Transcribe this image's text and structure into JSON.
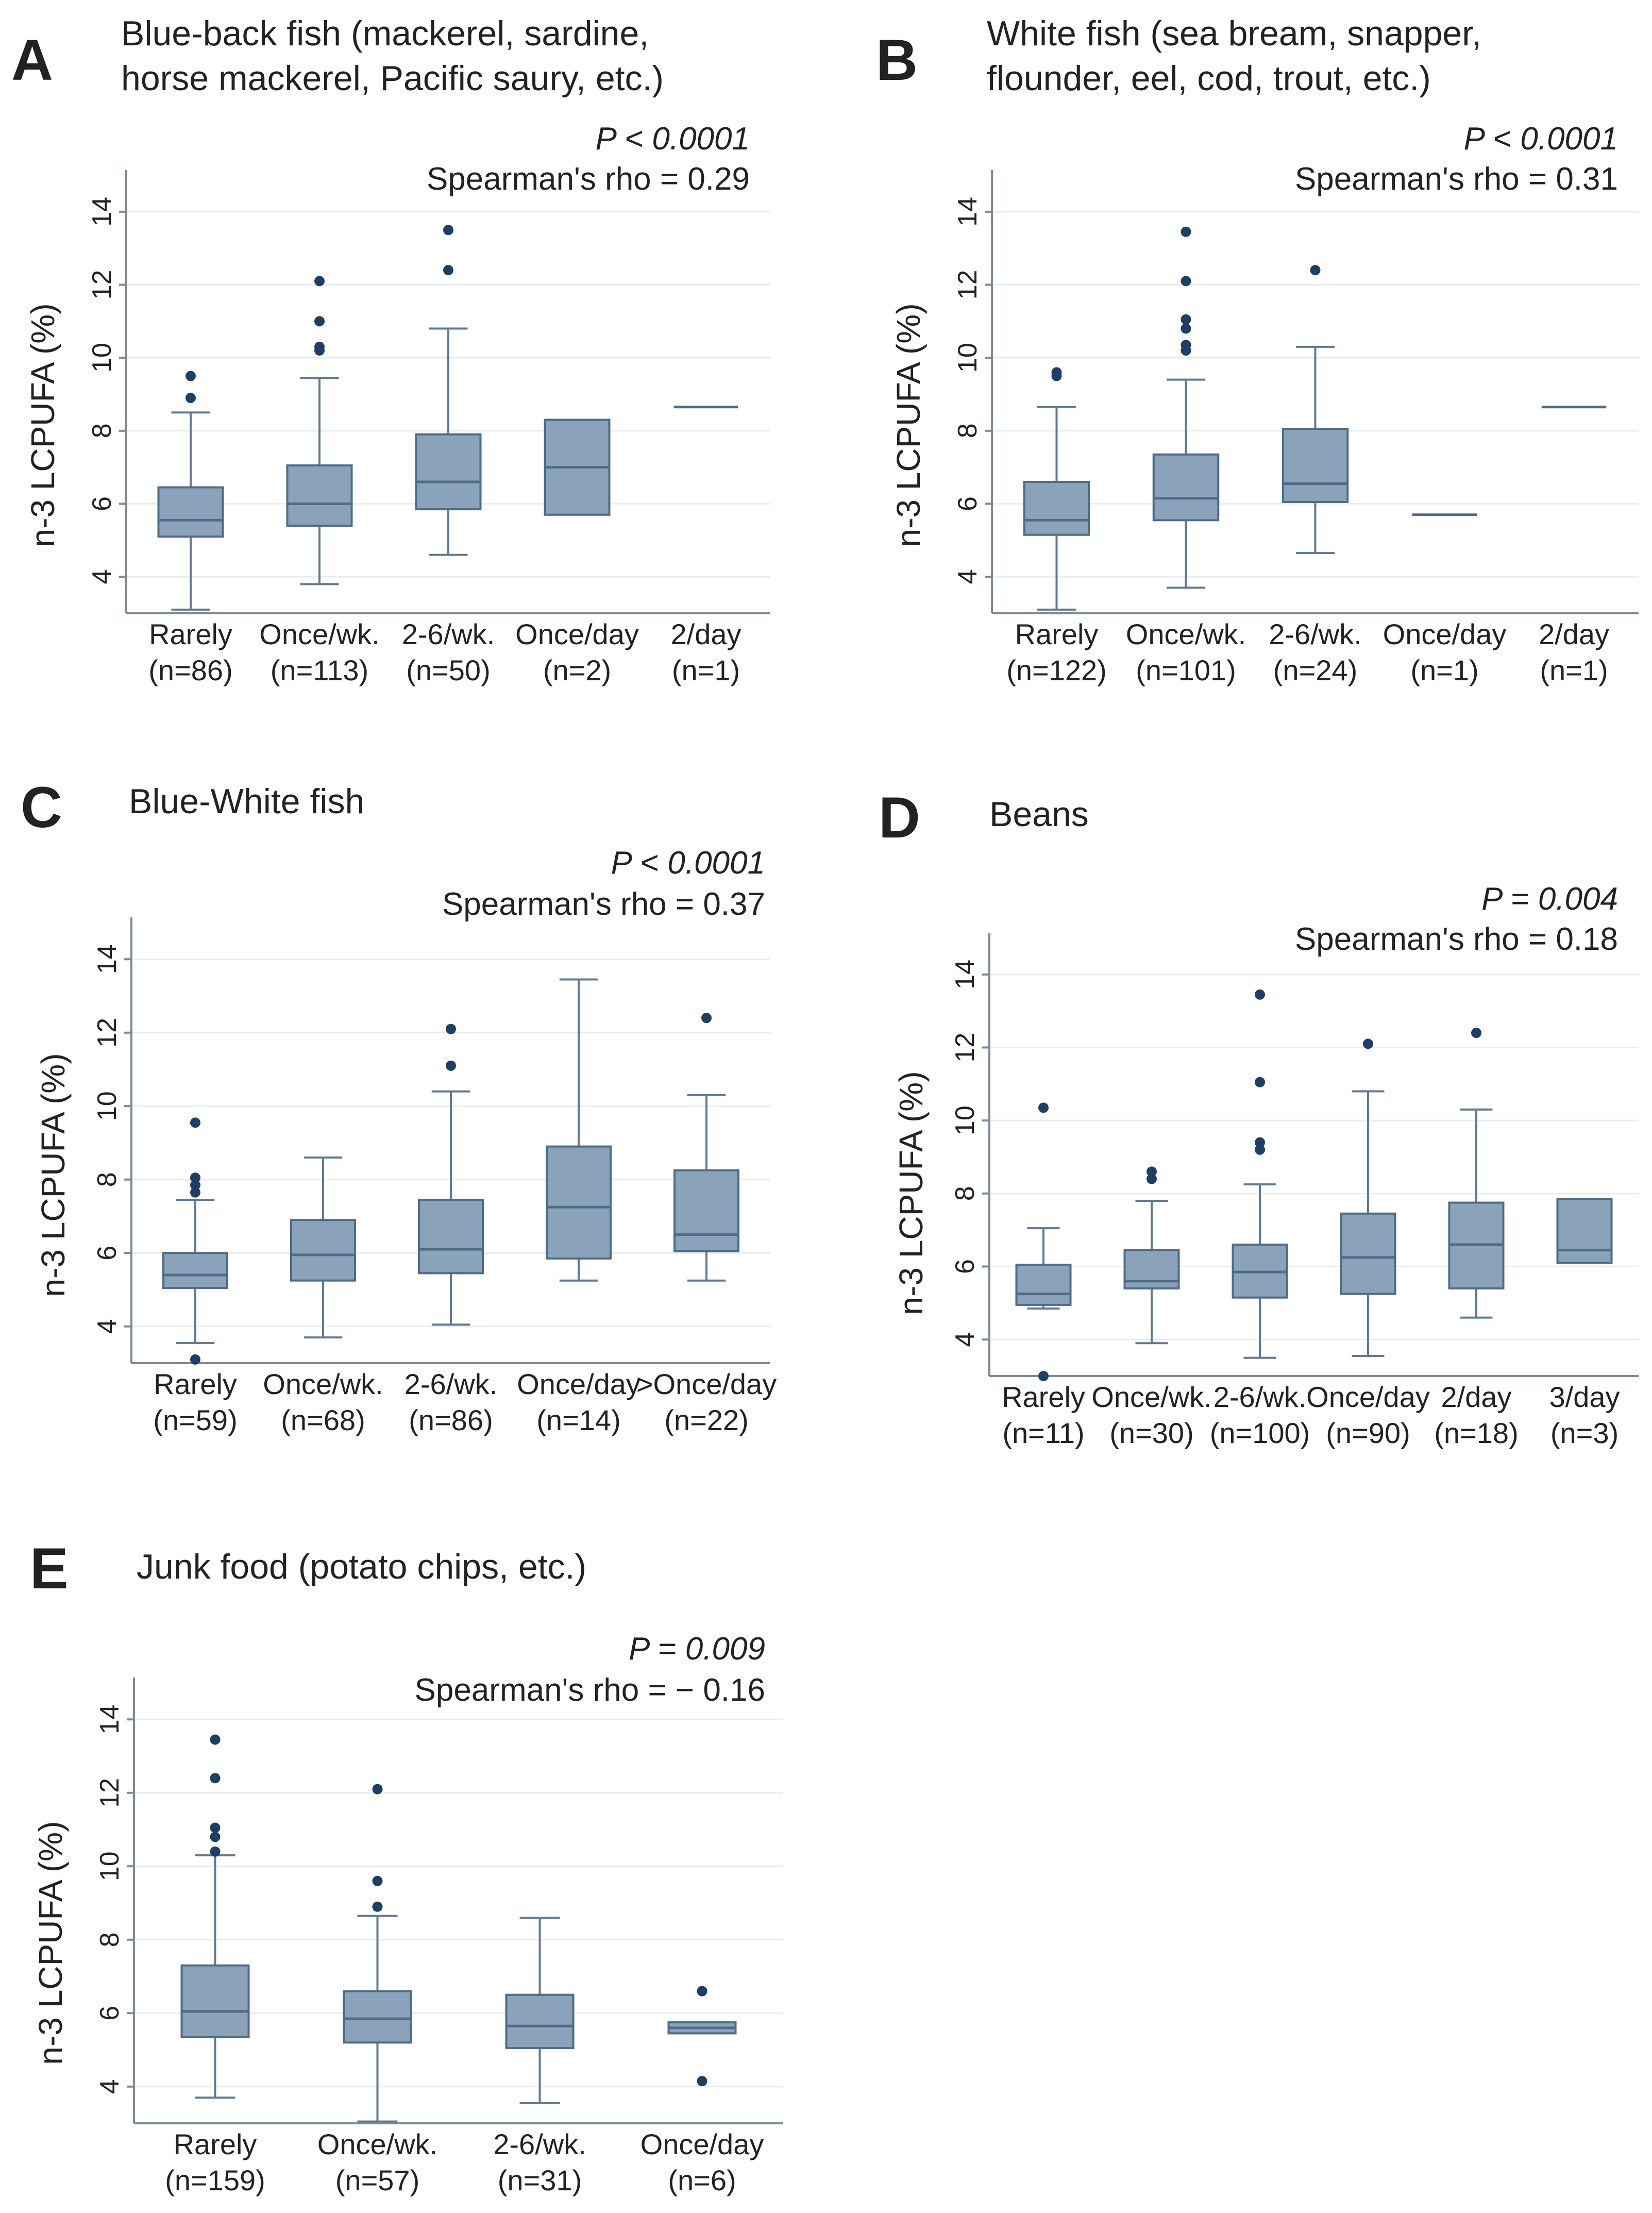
{
  "figure": {
    "ylabel": "n-3 LCPUFA (%)"
  },
  "chart_data": [
    {
      "type": "box",
      "panel": "A",
      "title_lines": [
        "Blue-back fish (mackerel, sardine,",
        "horse mackerel, Pacific saury, etc.)"
      ],
      "p_value": "P < 0.0001",
      "rho_text": "Spearman's rho = 0.29",
      "ylabel": "n-3 LCPUFA (%)",
      "yticks": [
        4,
        6,
        8,
        10,
        12,
        14
      ],
      "ylim": [
        3,
        15
      ],
      "categories": [
        {
          "label": "Rarely",
          "n": "(n=86)",
          "q1": 5.1,
          "median": 5.55,
          "q3": 6.45,
          "whisker_low": 3.1,
          "whisker_high": 8.5,
          "outliers": [
            8.9,
            9.5
          ]
        },
        {
          "label": "Once/wk.",
          "n": "(n=113)",
          "q1": 5.4,
          "median": 6.0,
          "q3": 7.05,
          "whisker_low": 3.8,
          "whisker_high": 9.45,
          "outliers": [
            10.2,
            10.3,
            11.0,
            12.1
          ]
        },
        {
          "label": "2-6/wk.",
          "n": "(n=50)",
          "q1": 5.85,
          "median": 6.6,
          "q3": 7.9,
          "whisker_low": 4.6,
          "whisker_high": 10.8,
          "outliers": [
            12.4,
            13.5
          ]
        },
        {
          "label": "Once/day",
          "n": "(n=2)",
          "q1": 5.7,
          "median": 7.0,
          "q3": 8.3,
          "whisker_low": 5.7,
          "whisker_high": 8.3,
          "outliers": []
        },
        {
          "label": "2/day",
          "n": "(n=1)",
          "q1": 8.65,
          "median": 8.65,
          "q3": 8.65,
          "whisker_low": 8.65,
          "whisker_high": 8.65,
          "outliers": []
        }
      ]
    },
    {
      "type": "box",
      "panel": "B",
      "title_lines": [
        "White fish (sea bream, snapper,",
        "flounder, eel, cod, trout, etc.)"
      ],
      "p_value": "P < 0.0001",
      "rho_text": "Spearman's rho = 0.31",
      "ylabel": "n-3 LCPUFA (%)",
      "yticks": [
        4,
        6,
        8,
        10,
        12,
        14
      ],
      "ylim": [
        3,
        15
      ],
      "categories": [
        {
          "label": "Rarely",
          "n": "(n=122)",
          "q1": 5.15,
          "median": 5.55,
          "q3": 6.6,
          "whisker_low": 3.1,
          "whisker_high": 8.65,
          "outliers": [
            9.5,
            9.6
          ]
        },
        {
          "label": "Once/wk.",
          "n": "(n=101)",
          "q1": 5.55,
          "median": 6.15,
          "q3": 7.35,
          "whisker_low": 3.7,
          "whisker_high": 9.4,
          "outliers": [
            10.2,
            10.35,
            10.8,
            11.05,
            12.1,
            13.45
          ]
        },
        {
          "label": "2-6/wk.",
          "n": "(n=24)",
          "q1": 6.05,
          "median": 6.55,
          "q3": 8.05,
          "whisker_low": 4.65,
          "whisker_high": 10.3,
          "outliers": [
            12.4
          ]
        },
        {
          "label": "Once/day",
          "n": "(n=1)",
          "q1": 5.7,
          "median": 5.7,
          "q3": 5.7,
          "whisker_low": 5.7,
          "whisker_high": 5.7,
          "outliers": []
        },
        {
          "label": "2/day",
          "n": "(n=1)",
          "q1": 8.65,
          "median": 8.65,
          "q3": 8.65,
          "whisker_low": 8.65,
          "whisker_high": 8.65,
          "outliers": []
        }
      ]
    },
    {
      "type": "box",
      "panel": "C",
      "title_lines": [
        "Blue-White fish"
      ],
      "p_value": "P < 0.0001",
      "rho_text": "Spearman's rho = 0.37",
      "ylabel": "n-3 LCPUFA (%)",
      "yticks": [
        4,
        6,
        8,
        10,
        12,
        14
      ],
      "ylim": [
        3,
        15
      ],
      "categories": [
        {
          "label": "Rarely",
          "n": "(n=59)",
          "q1": 5.05,
          "median": 5.4,
          "q3": 6.0,
          "whisker_low": 3.55,
          "whisker_high": 7.45,
          "outliers": [
            3.1,
            7.65,
            7.85,
            8.05,
            9.55
          ]
        },
        {
          "label": "Once/wk.",
          "n": "(n=68)",
          "q1": 5.25,
          "median": 5.95,
          "q3": 6.9,
          "whisker_low": 3.7,
          "whisker_high": 8.6,
          "outliers": []
        },
        {
          "label": "2-6/wk.",
          "n": "(n=86)",
          "q1": 5.45,
          "median": 6.1,
          "q3": 7.45,
          "whisker_low": 4.05,
          "whisker_high": 10.4,
          "outliers": [
            11.1,
            12.1
          ]
        },
        {
          "label": "Once/day",
          "n": "(n=14)",
          "q1": 5.85,
          "median": 7.25,
          "q3": 8.9,
          "whisker_low": 5.25,
          "whisker_high": 13.45,
          "outliers": []
        },
        {
          "label": ">Once/day",
          "n": "(n=22)",
          "q1": 6.05,
          "median": 6.5,
          "q3": 8.25,
          "whisker_low": 5.25,
          "whisker_high": 10.3,
          "outliers": [
            12.4
          ]
        }
      ]
    },
    {
      "type": "box",
      "panel": "D",
      "title_lines": [
        "Beans"
      ],
      "p_value": "P = 0.004",
      "rho_text": "Spearman's rho =  0.18",
      "ylabel": "n-3 LCPUFA (%)",
      "yticks": [
        4,
        6,
        8,
        10,
        12,
        14
      ],
      "ylim": [
        3,
        15
      ],
      "categories": [
        {
          "label": "Rarely",
          "n": "(n=11)",
          "q1": 4.95,
          "median": 5.25,
          "q3": 6.05,
          "whisker_low": 4.85,
          "whisker_high": 7.05,
          "outliers": [
            3.0,
            10.35
          ]
        },
        {
          "label": "Once/wk.",
          "n": "(n=30)",
          "q1": 5.4,
          "median": 5.6,
          "q3": 6.45,
          "whisker_low": 3.9,
          "whisker_high": 7.8,
          "outliers": [
            8.4,
            8.6
          ]
        },
        {
          "label": "2-6/wk.",
          "n": "(n=100)",
          "q1": 5.15,
          "median": 5.85,
          "q3": 6.6,
          "whisker_low": 3.5,
          "whisker_high": 8.25,
          "outliers": [
            9.2,
            9.4,
            11.05,
            13.45
          ]
        },
        {
          "label": "Once/day",
          "n": "(n=90)",
          "q1": 5.25,
          "median": 6.25,
          "q3": 7.45,
          "whisker_low": 3.55,
          "whisker_high": 10.8,
          "outliers": [
            12.1
          ]
        },
        {
          "label": "2/day",
          "n": "(n=18)",
          "q1": 5.4,
          "median": 6.6,
          "q3": 7.75,
          "whisker_low": 4.6,
          "whisker_high": 10.3,
          "outliers": [
            12.4
          ]
        },
        {
          "label": "3/day",
          "n": "(n=3)",
          "q1": 6.1,
          "median": 6.45,
          "q3": 7.85,
          "whisker_low": 6.1,
          "whisker_high": 7.85,
          "outliers": []
        }
      ]
    },
    {
      "type": "box",
      "panel": "E",
      "title_lines": [
        "Junk food (potato chips, etc.)"
      ],
      "p_value": "P = 0.009",
      "rho_text": "Spearman's rho = − 0.16",
      "ylabel": "n-3 LCPUFA (%)",
      "yticks": [
        4,
        6,
        8,
        10,
        12,
        14
      ],
      "ylim": [
        3,
        15
      ],
      "categories": [
        {
          "label": "Rarely",
          "n": "(n=159)",
          "q1": 5.35,
          "median": 6.05,
          "q3": 7.3,
          "whisker_low": 3.7,
          "whisker_high": 10.3,
          "outliers": [
            10.4,
            10.8,
            11.05,
            12.4,
            13.45
          ]
        },
        {
          "label": "Once/wk.",
          "n": "(n=57)",
          "q1": 5.2,
          "median": 5.85,
          "q3": 6.6,
          "whisker_low": 3.05,
          "whisker_high": 8.65,
          "outliers": [
            8.9,
            9.6,
            12.1
          ]
        },
        {
          "label": "2-6/wk.",
          "n": "(n=31)",
          "q1": 5.05,
          "median": 5.65,
          "q3": 6.5,
          "whisker_low": 3.55,
          "whisker_high": 8.6,
          "outliers": []
        },
        {
          "label": "Once/day",
          "n": "(n=6)",
          "q1": 5.45,
          "median": 5.6,
          "q3": 5.75,
          "whisker_low": 5.45,
          "whisker_high": 5.75,
          "outliers": [
            4.15,
            6.6
          ]
        }
      ]
    }
  ]
}
